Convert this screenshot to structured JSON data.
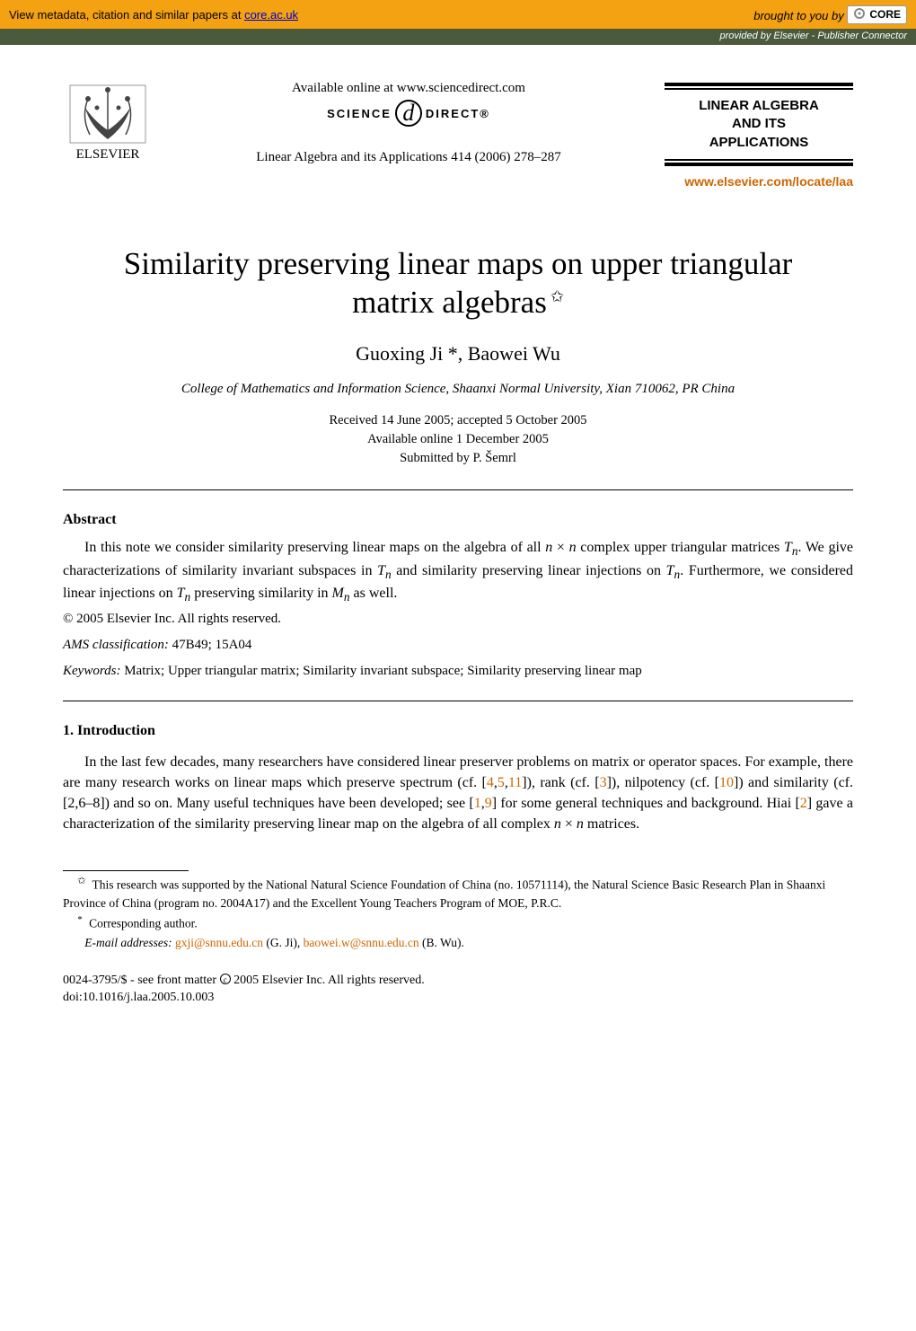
{
  "colors": {
    "banner_bg": "#f4a211",
    "subbanner_bg": "#4a5a3a",
    "link_orange": "#cc6600",
    "link_blue": "#0000cc",
    "text": "#000000",
    "page_bg": "#ffffff"
  },
  "banner": {
    "left_prefix": "View metadata, citation and similar papers at ",
    "left_link_text": "core.ac.uk",
    "right_text": "brought to you by ",
    "core_label": "CORE"
  },
  "subbanner": {
    "text": "provided by Elsevier - Publisher Connector"
  },
  "header": {
    "publisher": "ELSEVIER",
    "available_online": "Available online at www.sciencedirect.com",
    "sciencedirect_left": "SCIENCE",
    "sciencedirect_right": "DIRECT®",
    "journal_reference": "Linear Algebra and its Applications 414 (2006) 278–287",
    "journal_title_l1": "LINEAR ALGEBRA",
    "journal_title_l2": "AND ITS",
    "journal_title_l3": "APPLICATIONS",
    "journal_url": "www.elsevier.com/locate/laa"
  },
  "title": {
    "line1": "Similarity preserving linear maps on upper triangular",
    "line2": "matrix algebras",
    "star": "✩"
  },
  "authors": "Guoxing Ji *, Baowei Wu",
  "affiliation": "College of Mathematics and Information Science, Shaanxi Normal University, Xian 710062, PR China",
  "dates": {
    "received": "Received 14 June 2005; accepted 5 October 2005",
    "online": "Available online 1 December 2005",
    "submitted": "Submitted by P. Šemrl"
  },
  "abstract": {
    "heading": "Abstract",
    "body_html": "In this note we consider similarity preserving linear maps on the algebra of all <i>n</i> × <i>n</i> complex upper triangular matrices <span class='mathscr'>T</span><sub><i>n</i></sub>. We give characterizations of similarity invariant subspaces in <span class='mathscr'>T</span><sub><i>n</i></sub> and similarity preserving linear injections on <span class='mathscr'>T</span><sub><i>n</i></sub>. Furthermore, we considered linear injections on <span class='mathscr'>T</span><sub><i>n</i></sub> preserving similarity in <i>M<sub>n</sub></i> as well.",
    "copyright": "© 2005 Elsevier Inc. All rights reserved."
  },
  "ams": {
    "label": "AMS classification:",
    "value": "47B49; 15A04"
  },
  "keywords": {
    "label": "Keywords:",
    "value": "Matrix; Upper triangular matrix; Similarity invariant subspace; Similarity preserving linear map"
  },
  "intro": {
    "heading": "1. Introduction",
    "body_html": "In the last few decades, many researchers have considered linear preserver problems on matrix or operator spaces. For example, there are many research works on linear maps which preserve spectrum (cf. [<a class='ref' href='#'>4</a>,<a class='ref' href='#'>5</a>,<a class='ref' href='#'>11</a>]), rank (cf. [<a class='ref' href='#'>3</a>]), nilpotency (cf. [<a class='ref' href='#'>10</a>]) and similarity (cf. [2,6–8]) and so on. Many useful techniques have been developed; see [<a class='ref' href='#'>1</a>,<a class='ref' href='#'>9</a>] for some general techniques and background. Hiai [<a class='ref' href='#'>2</a>] gave a characterization of the similarity preserving linear map on the algebra of all complex <i>n</i> × <i>n</i> matrices."
  },
  "footnotes": {
    "funding_mark": "✩",
    "funding": "This research was supported by the National Natural Science Foundation of China (no. 10571114), the Natural Science Basic Research Plan in Shaanxi Province of China (program no. 2004A17) and the Excellent Young Teachers Program of MOE, P.R.C.",
    "corr_mark": "*",
    "corr": "Corresponding author.",
    "email_label": "E-mail addresses:",
    "email1": "gxji@snnu.edu.cn",
    "email1_who": "(G. Ji),",
    "email2": "baowei.w@snnu.edu.cn",
    "email2_who": "(B. Wu)."
  },
  "doi": {
    "line1_prefix": "0024-3795/$ - see front matter ",
    "line1_suffix": " 2005 Elsevier Inc. All rights reserved.",
    "line2": "doi:10.1016/j.laa.2005.10.003"
  }
}
